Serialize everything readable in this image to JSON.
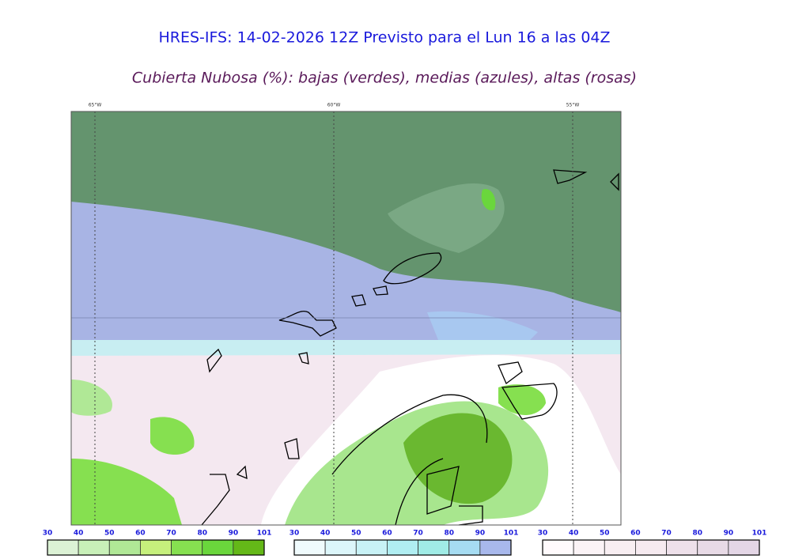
{
  "title": "HRES-IFS: 14-02-2026 12Z Previsto para el Lun 16 a las 04Z",
  "subtitle": "Cubierta Nubosa (%): bajas (verdes), medias (azules), altas (rosas)",
  "longitudes": [
    "65°W",
    "60°W",
    "55°W"
  ],
  "legends": [
    {
      "labels": [
        "30",
        "40",
        "50",
        "60",
        "70",
        "80",
        "90",
        "101"
      ],
      "colors": [
        "#dcf2d5",
        "#c8f0b8",
        "#b0e896",
        "#c6f07c",
        "#86e050",
        "#6ad63c",
        "#64b818"
      ]
    },
    {
      "labels": [
        "30",
        "40",
        "50",
        "60",
        "70",
        "80",
        "90",
        "101"
      ],
      "colors": [
        "#f0fbfd",
        "#dcf6fa",
        "#c8f2f6",
        "#b0eef2",
        "#a0ece6",
        "#a6dcf2",
        "#a8b8ec"
      ]
    },
    {
      "labels": [
        "30",
        "40",
        "50",
        "60",
        "70",
        "80",
        "90",
        "101"
      ],
      "colors": [
        "#fffafc",
        "#fbf3f6",
        "#f8eef2",
        "#f6eaf0",
        "#eee0ea",
        "#e8dae6",
        "#e4d6e6"
      ]
    }
  ]
}
